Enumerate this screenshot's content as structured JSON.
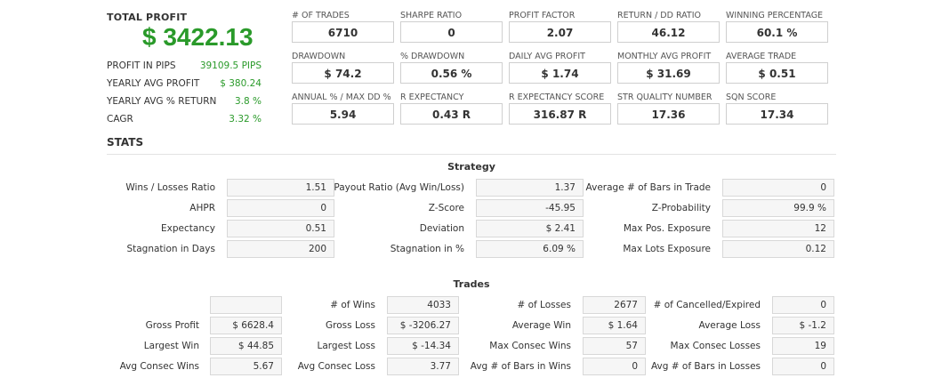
{
  "summary": {
    "total_profit_label": "TOTAL PROFIT",
    "total_profit_value": "$ 3422.13",
    "rows": [
      {
        "label": "PROFIT IN PIPS",
        "value": "39109.5 PIPS"
      },
      {
        "label": "YEARLY AVG PROFIT",
        "value": "$ 380.24"
      },
      {
        "label": "YEARLY AVG % RETURN",
        "value": "3.8 %"
      },
      {
        "label": "CAGR",
        "value": "3.32 %"
      }
    ]
  },
  "metrics": [
    {
      "label": "# OF TRADES",
      "value": "6710"
    },
    {
      "label": "SHARPE RATIO",
      "value": "0"
    },
    {
      "label": "PROFIT FACTOR",
      "value": "2.07"
    },
    {
      "label": "RETURN / DD RATIO",
      "value": "46.12"
    },
    {
      "label": "WINNING PERCENTAGE",
      "value": "60.1 %"
    },
    {
      "label": "DRAWDOWN",
      "value": "$ 74.2"
    },
    {
      "label": "% DRAWDOWN",
      "value": "0.56 %"
    },
    {
      "label": "DAILY AVG PROFIT",
      "value": "$ 1.74"
    },
    {
      "label": "MONTHLY AVG PROFIT",
      "value": "$ 31.69"
    },
    {
      "label": "AVERAGE TRADE",
      "value": "$ 0.51"
    },
    {
      "label": "ANNUAL % / MAX DD %",
      "value": "5.94"
    },
    {
      "label": "R EXPECTANCY",
      "value": "0.43 R"
    },
    {
      "label": "R EXPECTANCY SCORE",
      "value": "316.87 R"
    },
    {
      "label": "STR QUALITY NUMBER",
      "value": "17.36"
    },
    {
      "label": "SQN SCORE",
      "value": "17.34"
    }
  ],
  "stats_title": "STATS",
  "strategy": {
    "title": "Strategy",
    "rows": [
      [
        {
          "label": "Wins / Losses Ratio",
          "value": "1.51"
        },
        {
          "label": "Payout Ratio (Avg Win/Loss)",
          "value": "1.37"
        },
        {
          "label": "Average # of Bars in Trade",
          "value": "0"
        }
      ],
      [
        {
          "label": "AHPR",
          "value": "0"
        },
        {
          "label": "Z-Score",
          "value": "-45.95"
        },
        {
          "label": "Z-Probability",
          "value": "99.9 %"
        }
      ],
      [
        {
          "label": "Expectancy",
          "value": "0.51"
        },
        {
          "label": "Deviation",
          "value": "$ 2.41"
        },
        {
          "label": "Max Pos. Exposure",
          "value": "12"
        }
      ],
      [
        {
          "label": "Stagnation in Days",
          "value": "200"
        },
        {
          "label": "Stagnation in %",
          "value": "6.09 %"
        },
        {
          "label": "Max Lots Exposure",
          "value": "0.12"
        }
      ]
    ]
  },
  "trades": {
    "title": "Trades",
    "rows": [
      [
        {
          "label": "",
          "value": ""
        },
        {
          "label": "# of Wins",
          "value": "4033"
        },
        {
          "label": "# of Losses",
          "value": "2677"
        },
        {
          "label": "# of Cancelled/Expired",
          "value": "0"
        }
      ],
      [
        {
          "label": "Gross Profit",
          "value": "$ 6628.4"
        },
        {
          "label": "Gross Loss",
          "value": "$ -3206.27"
        },
        {
          "label": "Average Win",
          "value": "$ 1.64"
        },
        {
          "label": "Average Loss",
          "value": "$ -1.2"
        }
      ],
      [
        {
          "label": "Largest Win",
          "value": "$ 44.85"
        },
        {
          "label": "Largest Loss",
          "value": "$ -14.34"
        },
        {
          "label": "Max Consec Wins",
          "value": "57"
        },
        {
          "label": "Max Consec Losses",
          "value": "19"
        }
      ],
      [
        {
          "label": "Avg Consec Wins",
          "value": "5.67"
        },
        {
          "label": "Avg Consec Loss",
          "value": "3.77"
        },
        {
          "label": "Avg # of Bars in Wins",
          "value": "0"
        },
        {
          "label": "Avg # of Bars in Losses",
          "value": "0"
        }
      ]
    ]
  }
}
